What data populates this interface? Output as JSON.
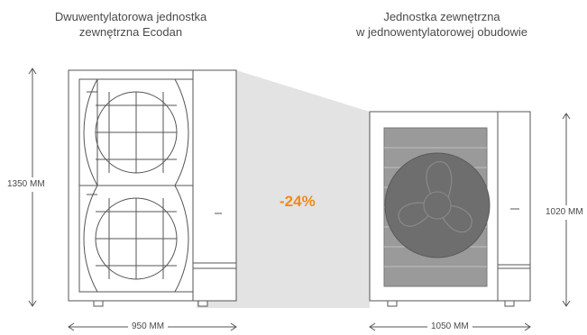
{
  "left_unit": {
    "caption_line1": "Dwuwentylatorowa jednostka",
    "caption_line2": "zewnętrzna Ecodan",
    "height_label": "1350 MM",
    "width_label": "950 MM"
  },
  "right_unit": {
    "caption_line1": "Jednostka zewnętrzna",
    "caption_line2": "w jednowentylatorowej obudowie",
    "height_label": "1020 MM",
    "width_label": "1050 MM"
  },
  "reduction": {
    "label": "-24%",
    "color": "#f08a1c"
  },
  "colors": {
    "line": "#555555",
    "shadow": "#e3e3e3",
    "grille": "#9a9a9a",
    "fan": "#6e6e6e"
  }
}
